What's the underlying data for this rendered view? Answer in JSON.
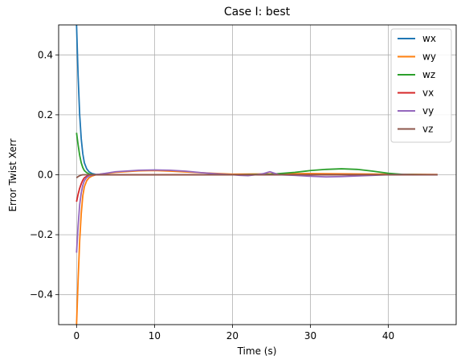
{
  "chart_data": {
    "type": "line",
    "title": "Case I: best",
    "xlabel": "Time (s)",
    "ylabel": "Error Twist Xerr",
    "xlim": [
      -2.3,
      48.7
    ],
    "ylim": [
      -0.5,
      0.5
    ],
    "xticks": [
      0,
      10,
      20,
      30,
      40
    ],
    "yticks": [
      -0.4,
      -0.2,
      0.0,
      0.2,
      0.4
    ],
    "xtick_labels": [
      "0",
      "10",
      "20",
      "30",
      "40"
    ],
    "ytick_labels": [
      "−0.4",
      "−0.2",
      "0.0",
      "0.2",
      "0.4"
    ],
    "grid": true,
    "legend_position": "top-right",
    "series": [
      {
        "name": "wx",
        "color": "#1f77b4",
        "x": [
          0,
          0.2,
          0.4,
          0.6,
          0.8,
          1.0,
          1.3,
          1.6,
          2.0,
          2.5,
          3,
          5,
          10,
          20,
          30,
          40,
          46.3
        ],
        "y": [
          0.5,
          0.33,
          0.2,
          0.12,
          0.07,
          0.04,
          0.02,
          0.01,
          0.004,
          0.001,
          0.0,
          0.0,
          0.0,
          0.0,
          0.0,
          0.0,
          0.0
        ]
      },
      {
        "name": "wy",
        "color": "#ff7f0e",
        "x": [
          0,
          0.2,
          0.4,
          0.6,
          0.8,
          1.0,
          1.3,
          1.6,
          2.0,
          2.5,
          3,
          5,
          8,
          10,
          12,
          15,
          20,
          25,
          30,
          35,
          40,
          46.3
        ],
        "y": [
          -0.5,
          -0.35,
          -0.22,
          -0.13,
          -0.07,
          -0.04,
          -0.02,
          -0.01,
          -0.004,
          0.0,
          0.002,
          0.008,
          0.013,
          0.014,
          0.012,
          0.008,
          0.002,
          0.003,
          0.004,
          0.003,
          0.002,
          0.001
        ]
      },
      {
        "name": "wz",
        "color": "#2ca02c",
        "x": [
          0,
          0.2,
          0.4,
          0.6,
          0.8,
          1.0,
          1.3,
          1.6,
          2.0,
          2.5,
          3,
          5,
          10,
          20,
          25,
          28,
          30,
          32,
          34,
          36,
          38,
          40,
          42,
          46.3
        ],
        "y": [
          0.14,
          0.1,
          0.065,
          0.04,
          0.024,
          0.014,
          0.007,
          0.003,
          0.001,
          0.0,
          0.0,
          0.0,
          0.0,
          0.0,
          0.002,
          0.008,
          0.014,
          0.018,
          0.02,
          0.018,
          0.012,
          0.005,
          0.001,
          0.0
        ]
      },
      {
        "name": "vx",
        "color": "#d62728",
        "x": [
          0,
          0.2,
          0.4,
          0.6,
          0.8,
          1.0,
          1.3,
          1.6,
          2.0,
          2.5,
          3,
          5,
          10,
          20,
          30,
          40,
          46.3
        ],
        "y": [
          -0.09,
          -0.065,
          -0.045,
          -0.03,
          -0.018,
          -0.01,
          -0.005,
          -0.002,
          -0.001,
          0.0,
          0.0,
          0.0,
          0.0,
          0.0,
          0.0,
          0.0,
          0.0
        ]
      },
      {
        "name": "vy",
        "color": "#9467bd",
        "x": [
          0,
          0.2,
          0.4,
          0.6,
          0.8,
          1.0,
          1.3,
          1.6,
          2.0,
          2.5,
          3,
          5,
          8,
          10,
          12,
          14,
          16,
          18,
          20,
          21,
          22,
          23,
          24,
          24.8,
          25.5,
          26,
          28,
          30,
          32,
          34,
          36,
          38,
          40,
          42,
          44,
          46.3
        ],
        "y": [
          -0.26,
          -0.17,
          -0.1,
          -0.06,
          -0.035,
          -0.02,
          -0.009,
          -0.004,
          -0.001,
          0.001,
          0.002,
          0.01,
          0.015,
          0.016,
          0.015,
          0.012,
          0.007,
          0.003,
          0.0,
          -0.002,
          -0.003,
          0.0,
          0.004,
          0.01,
          0.004,
          0.0,
          -0.002,
          -0.005,
          -0.007,
          -0.006,
          -0.004,
          -0.002,
          0.0,
          0.001,
          0.0,
          0.0
        ]
      },
      {
        "name": "vz",
        "color": "#8c564b",
        "x": [
          0,
          0.2,
          0.4,
          0.6,
          0.8,
          1.0,
          1.5,
          2.0,
          3,
          5,
          10,
          20,
          30,
          40,
          46.3
        ],
        "y": [
          -0.01,
          -0.006,
          -0.003,
          -0.001,
          0.0,
          0.0,
          0.0,
          0.0,
          0.0,
          0.0,
          0.0,
          0.0,
          0.0,
          0.0,
          0.0
        ]
      }
    ]
  }
}
